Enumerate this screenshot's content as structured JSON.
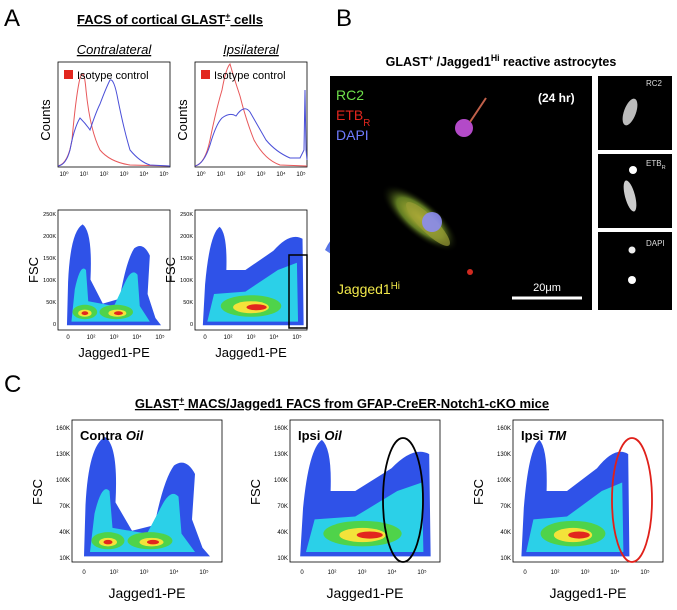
{
  "panel_a": {
    "letter": "A",
    "title": {
      "text": "FACS of cortical GLAST",
      "sup": "+",
      "rest": " cells"
    },
    "columns": [
      {
        "heading": "Contralateral",
        "legend": "Isotype control",
        "hist_y_label": "Counts",
        "hist_xticks": [
          "10⁰",
          "10¹",
          "10²",
          "10³",
          "10⁴",
          "10⁵"
        ],
        "density_y_label": "FSC",
        "density_yticks": [
          "250K",
          "200K",
          "150K",
          "100K",
          "50K",
          "0"
        ],
        "density_xticks": [
          "0",
          "10²",
          "10³",
          "10⁴",
          "10⁵"
        ],
        "x_label": "Jagged1-PE"
      },
      {
        "heading": "Ipsilateral",
        "legend": "Isotype control",
        "hist_y_label": "Counts",
        "hist_xticks": [
          "10⁰",
          "10¹",
          "10²",
          "10³",
          "10⁴",
          "10⁵"
        ],
        "density_y_label": "FSC",
        "density_yticks": [
          "250K",
          "200K",
          "150K",
          "100K",
          "50K",
          "0"
        ],
        "density_xticks": [
          "0",
          "10²",
          "10³",
          "10⁴",
          "10⁵"
        ],
        "x_label": "Jagged1-PE"
      }
    ]
  },
  "panel_b": {
    "letter": "B",
    "title": {
      "text": "GLAST",
      "sup": "+",
      "mid": " /Jagged1",
      "sup2": "Hi",
      "rest": " reactive astrocytes"
    },
    "channels": [
      {
        "text": "RC2"
      },
      {
        "text": "ETB",
        "sub": "R"
      },
      {
        "text": "DAPI"
      }
    ],
    "time": "(24 hr)",
    "scale_bar": "20μm",
    "marker": {
      "text": "Jagged1",
      "sup": "Hi"
    },
    "side_panels": [
      {
        "text": "RC2"
      },
      {
        "text": "ETB",
        "sub": "R"
      },
      {
        "text": "DAPI"
      }
    ]
  },
  "panel_c": {
    "letter": "C",
    "title": {
      "text": "GLAST",
      "sup": "+",
      "rest": " MACS/Jagged1 FACS from GFAP-CreER-Notch1-cKO mice"
    },
    "plots": [
      {
        "label": "Contra",
        "treatment": "Oil",
        "y_label": "FSC",
        "yticks": [
          "160K",
          "130K",
          "100K",
          "70K",
          "40K",
          "10K"
        ],
        "xticks": [
          "0",
          "10²",
          "10³",
          "10⁴",
          "10⁵"
        ],
        "x_label": "Jagged1-PE"
      },
      {
        "label": "Ipsi",
        "treatment": "Oil",
        "y_label": "FSC",
        "yticks": [
          "160K",
          "130K",
          "100K",
          "70K",
          "40K",
          "10K"
        ],
        "xticks": [
          "0",
          "10²",
          "10³",
          "10⁴",
          "10⁵"
        ],
        "x_label": "Jagged1-PE"
      },
      {
        "label": "Ipsi",
        "treatment": "TM",
        "y_label": "FSC",
        "yticks": [
          "160K",
          "130K",
          "100K",
          "70K",
          "40K",
          "10K"
        ],
        "xticks": [
          "0",
          "10²",
          "10³",
          "10⁴",
          "10⁵"
        ],
        "x_label": "Jagged1-PE"
      }
    ]
  }
}
